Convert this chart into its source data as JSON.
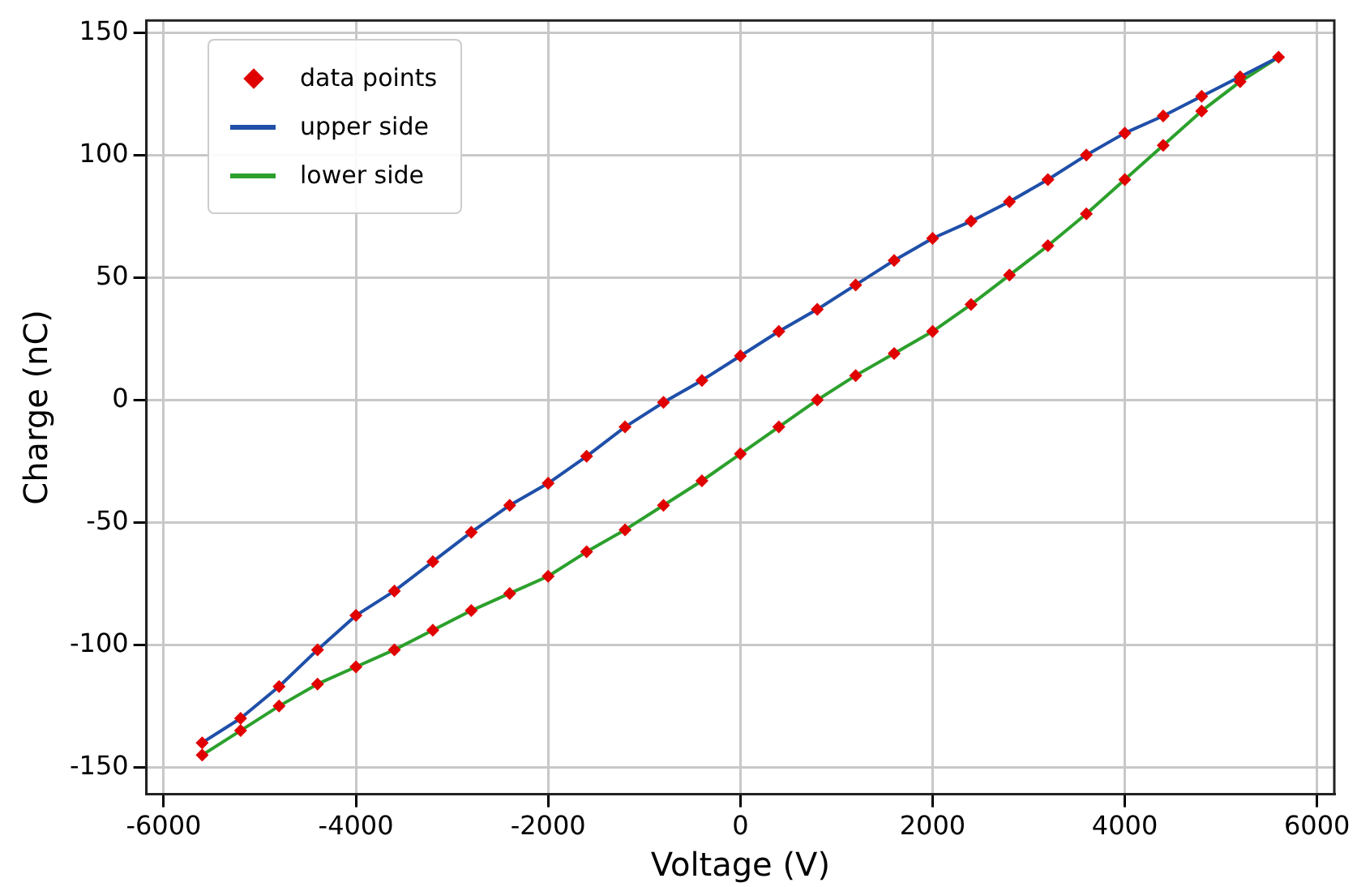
{
  "chart_data": {
    "type": "scatter",
    "xlabel": "Voltage (V)",
    "ylabel": "Charge (nC)",
    "xlim": [
      -6180,
      6180
    ],
    "xticks": [
      -6000,
      -4000,
      -2000,
      0,
      2000,
      4000,
      6000
    ],
    "ylim": [
      -161,
      155
    ],
    "yticks": [
      -150,
      -100,
      -50,
      0,
      50,
      100,
      150
    ],
    "grid": true,
    "legend": "top left",
    "marker": "diamond",
    "series": [
      {
        "name": "data points",
        "color": "#e00000",
        "x": [
          -5600,
          -5200,
          -4800,
          -4400,
          -4000,
          -3600,
          -3200,
          -2800,
          -2400,
          -2000,
          -1600,
          -1200,
          -800,
          -400,
          0,
          400,
          800,
          1200,
          1600,
          2000,
          2400,
          2800,
          3200,
          3600,
          4000,
          4400,
          4800,
          5200,
          5600,
          -5600,
          -5200,
          -4800,
          -4400,
          -4000,
          -3600,
          -3200,
          -2800,
          -2400,
          -2000,
          -1600,
          -1200,
          -800,
          -400,
          0,
          400,
          800,
          1200,
          1600,
          2000,
          2400,
          2800,
          3200,
          3600,
          4000,
          4400,
          4800,
          5200
        ],
        "values": [
          -140,
          -130,
          -117,
          -102,
          -88,
          -78,
          -66,
          -54,
          -43,
          -34,
          -23,
          -11,
          -1,
          8,
          18,
          28,
          37,
          47,
          57,
          66,
          73,
          81,
          90,
          100,
          109,
          116,
          124,
          132,
          140,
          -145,
          -135,
          -125,
          -116,
          -109,
          -102,
          -94,
          -86,
          -79,
          -72,
          -62,
          -53,
          -43,
          -33,
          -22,
          -11,
          0,
          10,
          19,
          28,
          39,
          51,
          63,
          76,
          90,
          104,
          118,
          130
        ]
      },
      {
        "name": "upper side",
        "type": "line",
        "marker": "none",
        "color": "#1f4fa8",
        "x": [
          -5600,
          -5200,
          -4800,
          -4400,
          -4000,
          -3600,
          -3200,
          -2800,
          -2400,
          -2000,
          -1600,
          -1200,
          -800,
          -400,
          0,
          400,
          800,
          1200,
          1600,
          2000,
          2400,
          2800,
          3200,
          3600,
          4000,
          4400,
          4800,
          5200,
          5600
        ],
        "values": [
          -140,
          -130,
          -117,
          -102,
          -88,
          -78,
          -66,
          -54,
          -43,
          -34,
          -23,
          -11,
          -1,
          8,
          18,
          28,
          37,
          47,
          57,
          66,
          73,
          81,
          90,
          100,
          109,
          116,
          124,
          132,
          140
        ]
      },
      {
        "name": "lower side",
        "type": "line",
        "marker": "none",
        "color": "#2ca02c",
        "x": [
          -5600,
          -5200,
          -4800,
          -4400,
          -4000,
          -3600,
          -3200,
          -2800,
          -2400,
          -2000,
          -1600,
          -1200,
          -800,
          -400,
          0,
          400,
          800,
          1200,
          1600,
          2000,
          2400,
          2800,
          3200,
          3600,
          4000,
          4400,
          4800,
          5200,
          5600
        ],
        "values": [
          -145,
          -135,
          -125,
          -116,
          -109,
          -102,
          -94,
          -86,
          -79,
          -72,
          -62,
          -53,
          -43,
          -33,
          -22,
          -11,
          0,
          10,
          19,
          28,
          39,
          51,
          63,
          76,
          90,
          104,
          118,
          130,
          140
        ]
      }
    ]
  }
}
